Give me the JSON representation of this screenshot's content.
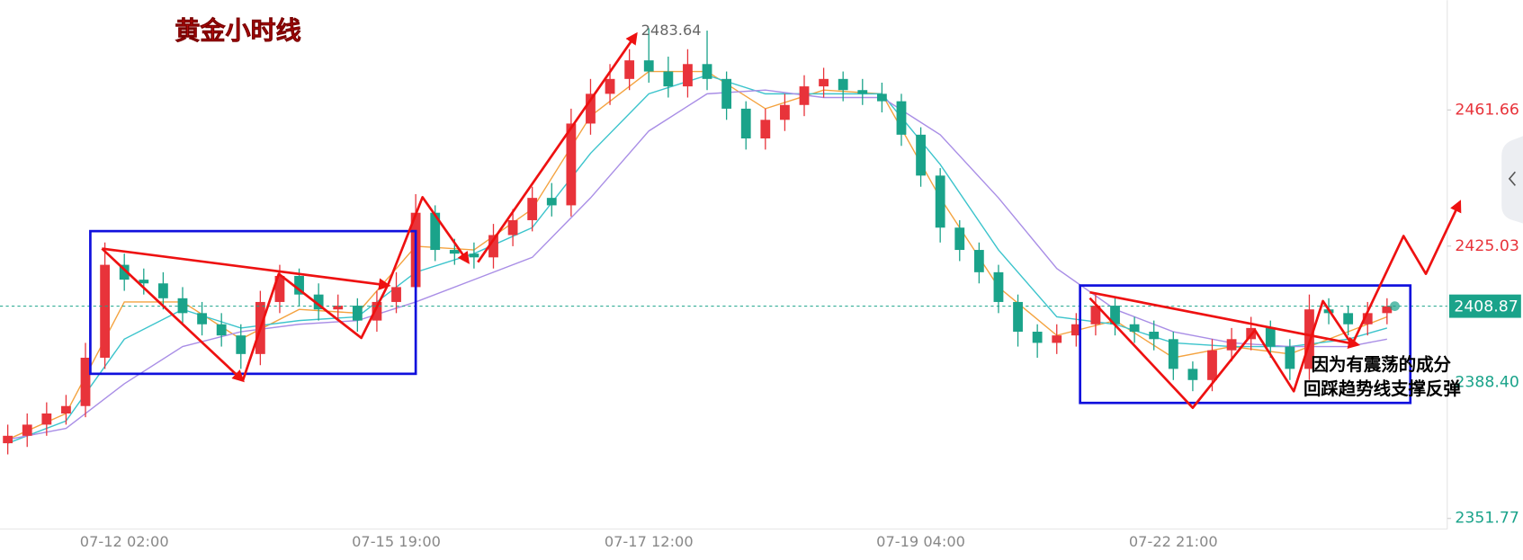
{
  "chart_data": {
    "type": "candlestick",
    "title": "黄金小时线",
    "annotations": [
      "因为有震荡的成分",
      "回踩趋势线支撑反弹"
    ],
    "categories": [
      null,
      null,
      null,
      null,
      null,
      null,
      "07-12 02:00",
      null,
      null,
      null,
      null,
      null,
      null,
      null,
      null,
      null,
      null,
      null,
      null,
      null,
      "07-15 19:00",
      null,
      null,
      null,
      null,
      null,
      null,
      null,
      null,
      null,
      null,
      null,
      null,
      "07-17 12:00",
      null,
      null,
      null,
      null,
      null,
      null,
      null,
      null,
      null,
      null,
      null,
      null,
      null,
      "07-19 04:00",
      null,
      null,
      null,
      null,
      null,
      null,
      null,
      null,
      null,
      null,
      null,
      null,
      "07-22 21:00",
      null,
      null,
      null,
      null,
      null,
      null,
      null,
      null,
      null,
      null,
      null
    ],
    "open": [
      2372,
      2374,
      2377,
      2380,
      2382,
      2395,
      2420,
      2416,
      2415,
      2411,
      2407,
      2404,
      2401,
      2396,
      2410,
      2417,
      2412,
      2408,
      2409,
      2405,
      2410,
      2414,
      2434,
      2424,
      2423,
      2422,
      2428,
      2432,
      2438,
      2436,
      2458,
      2466,
      2470,
      2475,
      2472,
      2468,
      2474,
      2470,
      2462,
      2454,
      2459,
      2463,
      2468,
      2470,
      2467,
      2466,
      2464,
      2455,
      2444,
      2430,
      2424,
      2418,
      2410,
      2402,
      2399,
      2401,
      2404,
      2409,
      2404,
      2402,
      2400,
      2392,
      2389,
      2397,
      2400,
      2403,
      2398,
      2392,
      2408,
      2407,
      2404,
      2407
    ],
    "high": [
      2377,
      2380,
      2383,
      2385,
      2399,
      2426,
      2423,
      2419,
      2418,
      2414,
      2410,
      2407,
      2404,
      2413,
      2420,
      2419,
      2415,
      2412,
      2411,
      2413,
      2418,
      2439,
      2436,
      2427,
      2426,
      2431,
      2435,
      2441,
      2442,
      2462,
      2470,
      2474,
      2478,
      2483.64,
      2476,
      2478,
      2483,
      2472,
      2464,
      2462,
      2466,
      2471,
      2473,
      2472,
      2470,
      2469,
      2466,
      2457,
      2446,
      2432,
      2426,
      2420,
      2412,
      2404,
      2404,
      2407,
      2412,
      2411,
      2406,
      2405,
      2402,
      2394,
      2400,
      2403,
      2406,
      2405,
      2400,
      2412,
      2411,
      2409,
      2410,
      2411
    ],
    "low": [
      2369,
      2371,
      2374,
      2377,
      2379,
      2392,
      2413,
      2412,
      2408,
      2404,
      2401,
      2398,
      2392,
      2393,
      2407,
      2409,
      2405,
      2405,
      2402,
      2402,
      2407,
      2411,
      2421,
      2420,
      2419,
      2419,
      2425,
      2429,
      2433,
      2433,
      2455,
      2463,
      2467,
      2469,
      2465,
      2465,
      2467,
      2459,
      2451,
      2451,
      2456,
      2460,
      2465,
      2464,
      2463,
      2461,
      2452,
      2441,
      2426,
      2421,
      2415,
      2407,
      2398,
      2395,
      2396,
      2398,
      2401,
      2401,
      2399,
      2397,
      2389,
      2386,
      2386,
      2394,
      2397,
      2395,
      2389,
      2389,
      2404,
      2401,
      2401,
      2404
    ],
    "close": [
      2374,
      2377,
      2380,
      2382,
      2395,
      2420,
      2416,
      2415,
      2411,
      2407,
      2404,
      2401,
      2396,
      2410,
      2417,
      2412,
      2408,
      2409,
      2405,
      2410,
      2414,
      2434,
      2424,
      2423,
      2422,
      2428,
      2432,
      2438,
      2436,
      2458,
      2466,
      2470,
      2475,
      2472,
      2468,
      2474,
      2470,
      2462,
      2454,
      2459,
      2463,
      2468,
      2470,
      2467,
      2466,
      2464,
      2455,
      2444,
      2430,
      2424,
      2418,
      2410,
      2402,
      2399,
      2401,
      2404,
      2409,
      2404,
      2402,
      2400,
      2392,
      2389,
      2397,
      2400,
      2403,
      2398,
      2392,
      2408,
      2407,
      2404,
      2407,
      2408.87
    ],
    "up_color": "#e8333a",
    "down_color": "#1aa38a",
    "moving_averages": [
      {
        "color": "#f4a340",
        "x": [
          0,
          3,
          6,
          9,
          12,
          15,
          18,
          21,
          24,
          27,
          30,
          33,
          36,
          39,
          42,
          45,
          48,
          51,
          54,
          57,
          60,
          63,
          66,
          69,
          71
        ],
        "values": [
          2373,
          2380,
          2410,
          2410,
          2400,
          2408,
          2407,
          2425,
          2424,
          2435,
          2460,
          2472,
          2472,
          2462,
          2467,
          2466,
          2438,
          2414,
          2401,
          2405,
          2395,
          2398,
          2396,
          2402,
          2406
        ]
      },
      {
        "color": "#3cc4cc",
        "x": [
          0,
          3,
          6,
          9,
          12,
          15,
          18,
          21,
          24,
          27,
          30,
          33,
          36,
          39,
          42,
          45,
          48,
          51,
          54,
          57,
          60,
          63,
          66,
          69,
          71
        ],
        "values": [
          2372,
          2378,
          2400,
          2408,
          2403,
          2405,
          2406,
          2418,
          2423,
          2430,
          2450,
          2466,
          2471,
          2466,
          2466,
          2466,
          2447,
          2424,
          2406,
          2404,
          2399,
          2398,
          2398,
          2400,
          2403
        ]
      },
      {
        "color": "#a98ee6",
        "x": [
          0,
          3,
          6,
          9,
          12,
          15,
          18,
          21,
          24,
          27,
          30,
          33,
          36,
          39,
          42,
          45,
          48,
          51,
          54,
          57,
          60,
          63,
          66,
          69,
          71
        ],
        "values": [
          2373,
          2376,
          2388,
          2398,
          2402,
          2404,
          2405,
          2410,
          2416,
          2422,
          2438,
          2456,
          2466,
          2467,
          2465,
          2465,
          2455,
          2438,
          2419,
          2408,
          2402,
          2399,
          2398,
          2398,
          2400
        ]
      }
    ],
    "ylim": [
      2348.9,
      2491.2
    ],
    "yticks": [
      2351.77,
      {
        "value": 2388.4,
        "label": "2388.40"
      },
      2425.03,
      2461.66
    ]
  }
}
